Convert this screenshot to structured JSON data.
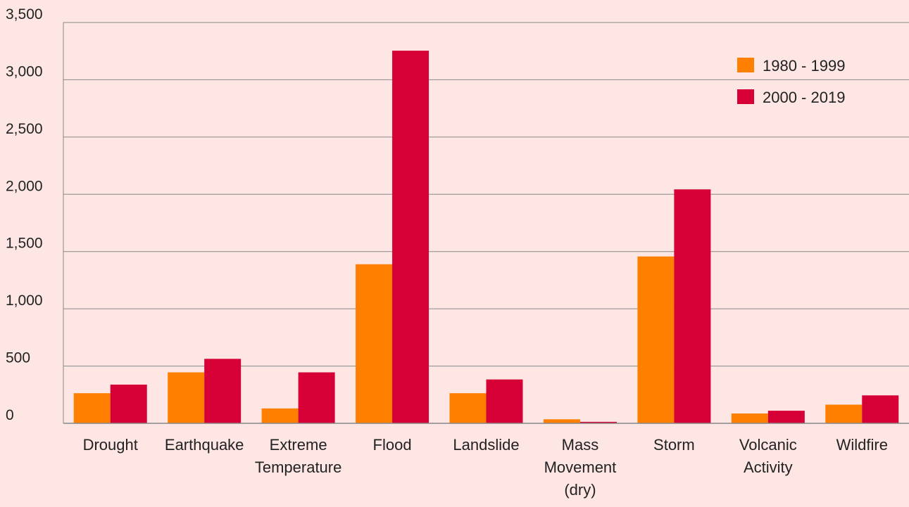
{
  "chart_data": {
    "type": "bar",
    "categories": [
      [
        "Drought"
      ],
      [
        "Earthquake"
      ],
      [
        "Extreme",
        "Temperature"
      ],
      [
        "Flood"
      ],
      [
        "Landslide"
      ],
      [
        "Mass",
        "Movement",
        "(dry)"
      ],
      [
        "Storm"
      ],
      [
        "Volcanic",
        "Activity"
      ],
      [
        "Wildfire"
      ]
    ],
    "series": [
      {
        "name": "1980 - 1999",
        "color": "#ff8000",
        "values": [
          263,
          445,
          130,
          1389,
          263,
          35,
          1457,
          86,
          163
        ]
      },
      {
        "name": "2000 - 2019",
        "color": "#d60036",
        "values": [
          338,
          563,
          445,
          3254,
          383,
          13,
          2043,
          110,
          244
        ]
      }
    ],
    "ylim": [
      0,
      3500
    ],
    "yticks": [
      0,
      500,
      1000,
      1500,
      2000,
      2500,
      3000,
      3500
    ],
    "ytick_labels": [
      "0",
      "500",
      "1,000",
      "1,500",
      "2,000",
      "2,500",
      "3,000",
      "3,500"
    ],
    "grid": true,
    "legend_position": "top-right",
    "title": "",
    "xlabel": "",
    "ylabel": ""
  }
}
